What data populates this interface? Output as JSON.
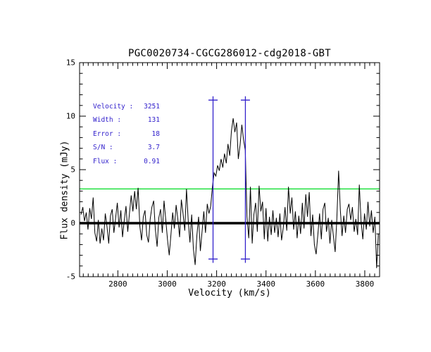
{
  "title": "PGC0020734-CGCG286012-cdg2018-GBT",
  "colors": {
    "background": "#FFFFFF",
    "frame": "#000000",
    "trace": "#000000",
    "baseline": "#000000",
    "threshold": "#00DD22",
    "marker": "#3322CC",
    "legend_text": "#3322CC"
  },
  "legend": {
    "rows": [
      {
        "label": "Velocity :",
        "value": "3251"
      },
      {
        "label": "Width :",
        "value": "131"
      },
      {
        "label": "Error :",
        "value": "18"
      },
      {
        "label": "S/N :",
        "value": "3.7"
      },
      {
        "label": "Flux :",
        "value": "0.91"
      }
    ]
  },
  "chart_data": {
    "type": "line",
    "title": "PGC0020734-CGCG286012-cdg2018-GBT",
    "xlabel": "Velocity (km/s)",
    "ylabel": "Flux density (mJy)",
    "xlim": [
      2645,
      3860
    ],
    "ylim": [
      -5,
      15
    ],
    "grid": false,
    "x_major_ticks": [
      2800,
      3000,
      3200,
      3400,
      3600,
      3800
    ],
    "x_minor_step": 20,
    "y_major_ticks": [
      -5,
      0,
      5,
      10,
      15
    ],
    "y_minor_step": 1,
    "baseline_flux": 0,
    "threshold_flux": 3.2,
    "signal_markers": {
      "velocity_low": 3185.5,
      "velocity_high": 3316.5,
      "flux_top": 11.5,
      "flux_bottom": -3.35
    },
    "measurements": {
      "velocity": 3251,
      "width": 131,
      "error": 18,
      "sn": 3.7,
      "flux": 0.91
    },
    "series": [
      {
        "name": "spectrum",
        "points": [
          [
            2651,
            0.8
          ],
          [
            2658,
            1.5
          ],
          [
            2665,
            0.2
          ],
          [
            2672,
            1.0
          ],
          [
            2679,
            -0.6
          ],
          [
            2686,
            1.4
          ],
          [
            2693,
            0.4
          ],
          [
            2700,
            2.4
          ],
          [
            2707,
            -0.9
          ],
          [
            2714,
            -1.7
          ],
          [
            2721,
            0.3
          ],
          [
            2728,
            -1.9
          ],
          [
            2735,
            -0.5
          ],
          [
            2742,
            -1.6
          ],
          [
            2749,
            0.9
          ],
          [
            2756,
            -0.3
          ],
          [
            2763,
            -1.9
          ],
          [
            2770,
            0.7
          ],
          [
            2777,
            1.3
          ],
          [
            2784,
            -0.9
          ],
          [
            2791,
            0.5
          ],
          [
            2798,
            1.9
          ],
          [
            2805,
            -0.4
          ],
          [
            2812,
            1.2
          ],
          [
            2819,
            -1.3
          ],
          [
            2826,
            0.3
          ],
          [
            2833,
            1.6
          ],
          [
            2840,
            -0.8
          ],
          [
            2847,
            0.9
          ],
          [
            2854,
            2.6
          ],
          [
            2861,
            1.1
          ],
          [
            2868,
            3.0
          ],
          [
            2875,
            1.3
          ],
          [
            2882,
            3.3
          ],
          [
            2889,
            -0.3
          ],
          [
            2896,
            -1.6
          ],
          [
            2903,
            0.6
          ],
          [
            2910,
            1.2
          ],
          [
            2917,
            -1.1
          ],
          [
            2924,
            -1.8
          ],
          [
            2931,
            0.4
          ],
          [
            2938,
            1.5
          ],
          [
            2945,
            2.1
          ],
          [
            2952,
            -0.6
          ],
          [
            2959,
            -2.2
          ],
          [
            2966,
            0.5
          ],
          [
            2973,
            1.3
          ],
          [
            2980,
            -0.9
          ],
          [
            2987,
            2.1
          ],
          [
            2994,
            0.3
          ],
          [
            3001,
            -1.5
          ],
          [
            3008,
            -3.0
          ],
          [
            3015,
            -1.1
          ],
          [
            3022,
            1.0
          ],
          [
            3029,
            -0.5
          ],
          [
            3036,
            1.7
          ],
          [
            3043,
            0.4
          ],
          [
            3050,
            -1.3
          ],
          [
            3057,
            2.2
          ],
          [
            3064,
            0.9
          ],
          [
            3071,
            -0.7
          ],
          [
            3078,
            3.2
          ],
          [
            3085,
            0.2
          ],
          [
            3092,
            -1.8
          ],
          [
            3099,
            0.8
          ],
          [
            3106,
            -2.4
          ],
          [
            3113,
            -3.9
          ],
          [
            3120,
            -1.2
          ],
          [
            3127,
            0.6
          ],
          [
            3134,
            -2.6
          ],
          [
            3141,
            -0.8
          ],
          [
            3148,
            1.1
          ],
          [
            3155,
            -0.9
          ],
          [
            3162,
            1.8
          ],
          [
            3169,
            0.9
          ],
          [
            3176,
            1.6
          ],
          [
            3183,
            3.4
          ],
          [
            3190,
            4.7
          ],
          [
            3197,
            4.4
          ],
          [
            3204,
            5.4
          ],
          [
            3211,
            4.9
          ],
          [
            3218,
            6.0
          ],
          [
            3225,
            5.2
          ],
          [
            3232,
            6.5
          ],
          [
            3239,
            5.6
          ],
          [
            3246,
            7.4
          ],
          [
            3253,
            6.3
          ],
          [
            3260,
            8.6
          ],
          [
            3267,
            9.8
          ],
          [
            3274,
            8.5
          ],
          [
            3281,
            9.4
          ],
          [
            3288,
            6.0
          ],
          [
            3295,
            7.3
          ],
          [
            3302,
            9.2
          ],
          [
            3309,
            7.8
          ],
          [
            3316,
            6.8
          ],
          [
            3323,
            0.6
          ],
          [
            3330,
            -1.4
          ],
          [
            3337,
            3.4
          ],
          [
            3344,
            -1.9
          ],
          [
            3351,
            0.8
          ],
          [
            3358,
            1.9
          ],
          [
            3365,
            -0.8
          ],
          [
            3372,
            3.5
          ],
          [
            3379,
            1.1
          ],
          [
            3386,
            2.0
          ],
          [
            3393,
            -1.5
          ],
          [
            3400,
            1.4
          ],
          [
            3407,
            -1.7
          ],
          [
            3414,
            0.6
          ],
          [
            3421,
            -1.1
          ],
          [
            3428,
            1.2
          ],
          [
            3435,
            -0.9
          ],
          [
            3442,
            0.5
          ],
          [
            3449,
            -1.3
          ],
          [
            3456,
            0.9
          ],
          [
            3463,
            -1.6
          ],
          [
            3470,
            -0.4
          ],
          [
            3477,
            1.5
          ],
          [
            3484,
            -0.7
          ],
          [
            3491,
            3.4
          ],
          [
            3498,
            0.9
          ],
          [
            3505,
            2.4
          ],
          [
            3512,
            -0.6
          ],
          [
            3519,
            1.1
          ],
          [
            3526,
            -1.4
          ],
          [
            3533,
            0.7
          ],
          [
            3540,
            -1.0
          ],
          [
            3547,
            1.9
          ],
          [
            3554,
            -0.5
          ],
          [
            3561,
            2.7
          ],
          [
            3568,
            0.6
          ],
          [
            3575,
            2.9
          ],
          [
            3582,
            -1.2
          ],
          [
            3589,
            0.8
          ],
          [
            3596,
            -2.0
          ],
          [
            3603,
            -2.9
          ],
          [
            3610,
            -1.1
          ],
          [
            3617,
            0.9
          ],
          [
            3624,
            -1.5
          ],
          [
            3631,
            1.3
          ],
          [
            3638,
            1.9
          ],
          [
            3645,
            -0.8
          ],
          [
            3652,
            0.5
          ],
          [
            3659,
            -1.9
          ],
          [
            3666,
            0.3
          ],
          [
            3673,
            -1.2
          ],
          [
            3680,
            -2.7
          ],
          [
            3687,
            0.4
          ],
          [
            3694,
            4.9
          ],
          [
            3701,
            1.2
          ],
          [
            3708,
            -1.2
          ],
          [
            3715,
            0.7
          ],
          [
            3722,
            -0.9
          ],
          [
            3729,
            1.3
          ],
          [
            3736,
            1.8
          ],
          [
            3743,
            0.3
          ],
          [
            3750,
            1.5
          ],
          [
            3757,
            -0.8
          ],
          [
            3764,
            0.4
          ],
          [
            3771,
            -1.1
          ],
          [
            3778,
            3.6
          ],
          [
            3785,
            0.2
          ],
          [
            3792,
            -1.5
          ],
          [
            3799,
            0.9
          ],
          [
            3806,
            -0.6
          ],
          [
            3813,
            2.0
          ],
          [
            3820,
            -0.3
          ],
          [
            3827,
            1.2
          ],
          [
            3834,
            -0.9
          ],
          [
            3841,
            0.6
          ],
          [
            3848,
            -4.2
          ],
          [
            3855,
            -1.0
          ]
        ]
      }
    ]
  }
}
